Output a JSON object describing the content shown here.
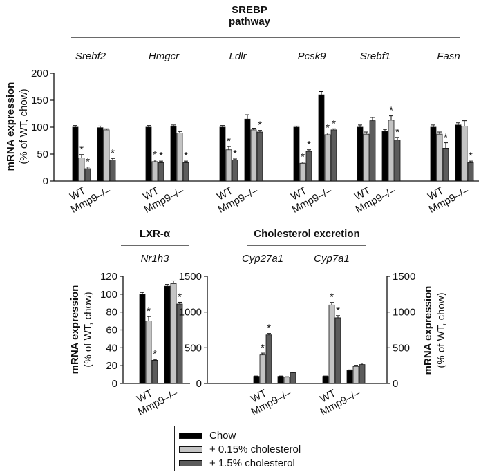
{
  "colors": {
    "chow": "#000000",
    "c015": "#c4c4c4",
    "c15": "#5c5c5c",
    "axis": "#111111"
  },
  "legend": {
    "items": [
      {
        "label": "Chow",
        "color": "#000000"
      },
      {
        "label": "+ 0.15% cholesterol",
        "color": "#c4c4c4"
      },
      {
        "label": "+ 1.5% cholesterol",
        "color": "#5c5c5c"
      }
    ]
  },
  "chart_data": [
    {
      "type": "bar",
      "title": "SREBP pathway",
      "title_lines": [
        "SREBP",
        "pathway"
      ],
      "ylabel_lines": [
        "mRNA expression",
        "(% of WT, chow)"
      ],
      "ylim": [
        0,
        200
      ],
      "yticks": [
        0,
        50,
        100,
        150,
        200
      ],
      "genotypes": [
        "WT",
        "Mmp9–/–"
      ],
      "series": [
        "Chow",
        "+ 0.15% cholesterol",
        "+ 1.5% cholesterol"
      ],
      "groups": [
        {
          "gene": "Srebf2",
          "WT": [
            100,
            43,
            23
          ],
          "Mmp9": [
            99,
            95,
            39
          ],
          "err_WT": [
            3,
            6,
            3
          ],
          "err_Mmp9": [
            3,
            2,
            3
          ],
          "sig_WT": [
            false,
            true,
            true
          ],
          "sig_Mmp9": [
            false,
            false,
            true
          ]
        },
        {
          "gene": "Hmgcr",
          "WT": [
            100,
            36,
            34
          ],
          "Mmp9": [
            101,
            89,
            34
          ],
          "err_WT": [
            3,
            3,
            3
          ],
          "err_Mmp9": [
            3,
            3,
            3
          ],
          "sig_WT": [
            false,
            true,
            true
          ],
          "sig_Mmp9": [
            false,
            false,
            true
          ]
        },
        {
          "gene": "Ldlr",
          "WT": [
            100,
            58,
            39
          ],
          "Mmp9": [
            115,
            95,
            91
          ],
          "err_WT": [
            3,
            6,
            2
          ],
          "err_Mmp9": [
            8,
            3,
            3
          ],
          "sig_WT": [
            false,
            true,
            true
          ],
          "sig_Mmp9": [
            false,
            false,
            true
          ]
        },
        {
          "gene": "Pcsk9",
          "WT": [
            100,
            33,
            55
          ],
          "Mmp9": [
            160,
            86,
            95
          ],
          "err_WT": [
            2,
            2,
            3
          ],
          "err_Mmp9": [
            6,
            3,
            2
          ],
          "sig_WT": [
            false,
            true,
            true
          ],
          "sig_Mmp9": [
            false,
            true,
            true
          ]
        },
        {
          "gene": "Srebf1",
          "WT": [
            100,
            87,
            112
          ],
          "Mmp9": [
            92,
            113,
            76
          ],
          "err_WT": [
            4,
            4,
            6
          ],
          "err_Mmp9": [
            4,
            8,
            5
          ],
          "sig_WT": [
            false,
            false,
            false
          ],
          "sig_Mmp9": [
            false,
            true,
            true
          ]
        },
        {
          "gene": "Fasn",
          "WT": [
            100,
            87,
            61
          ],
          "Mmp9": [
            104,
            102,
            34
          ],
          "err_WT": [
            4,
            4,
            10
          ],
          "err_Mmp9": [
            4,
            10,
            3
          ],
          "sig_WT": [
            false,
            false,
            true
          ],
          "sig_Mmp9": [
            false,
            false,
            true
          ]
        }
      ]
    },
    {
      "type": "bar",
      "title": "LXR-α",
      "ylabel_lines": [
        "mRNA expression",
        "(% of WT, chow)"
      ],
      "ylim": [
        0,
        120
      ],
      "yticks": [
        0,
        20,
        40,
        60,
        80,
        100,
        120
      ],
      "genotypes": [
        "WT",
        "Mmp9–/–"
      ],
      "series": [
        "Chow",
        "+ 0.15% cholesterol",
        "+ 1.5% cholesterol"
      ],
      "groups": [
        {
          "gene": "Nr1h3",
          "WT": [
            100,
            70,
            26
          ],
          "Mmp9": [
            109,
            112,
            89
          ],
          "err_WT": [
            2,
            5,
            1
          ],
          "err_Mmp9": [
            2,
            3,
            2
          ],
          "sig_WT": [
            false,
            true,
            true
          ],
          "sig_Mmp9": [
            false,
            false,
            true
          ]
        }
      ]
    },
    {
      "type": "bar",
      "title": "Cholesterol excretion",
      "ylabel_lines": [
        "mRNA expression",
        "(% of WT, chow)"
      ],
      "ylim": [
        0,
        1500
      ],
      "yticks": [
        0,
        500,
        1000,
        1500
      ],
      "genotypes": [
        "WT",
        "Mmp9–/–"
      ],
      "series": [
        "Chow",
        "+ 0.15% cholesterol",
        "+ 1.5% cholesterol"
      ],
      "groups": [
        {
          "gene": "Cyp27a1",
          "WT": [
            100,
            400,
            680
          ],
          "Mmp9": [
            100,
            90,
            150
          ],
          "err_WT": [
            5,
            25,
            20
          ],
          "err_Mmp9": [
            5,
            5,
            8
          ],
          "sig_WT": [
            false,
            true,
            true
          ],
          "sig_Mmp9": [
            false,
            false,
            false
          ]
        },
        {
          "gene": "Cyp7a1",
          "WT": [
            100,
            1100,
            920
          ],
          "Mmp9": [
            180,
            240,
            265
          ],
          "err_WT": [
            5,
            35,
            30
          ],
          "err_Mmp9": [
            10,
            15,
            20
          ],
          "sig_WT": [
            false,
            true,
            true
          ],
          "sig_Mmp9": [
            false,
            false,
            false
          ]
        }
      ]
    }
  ]
}
